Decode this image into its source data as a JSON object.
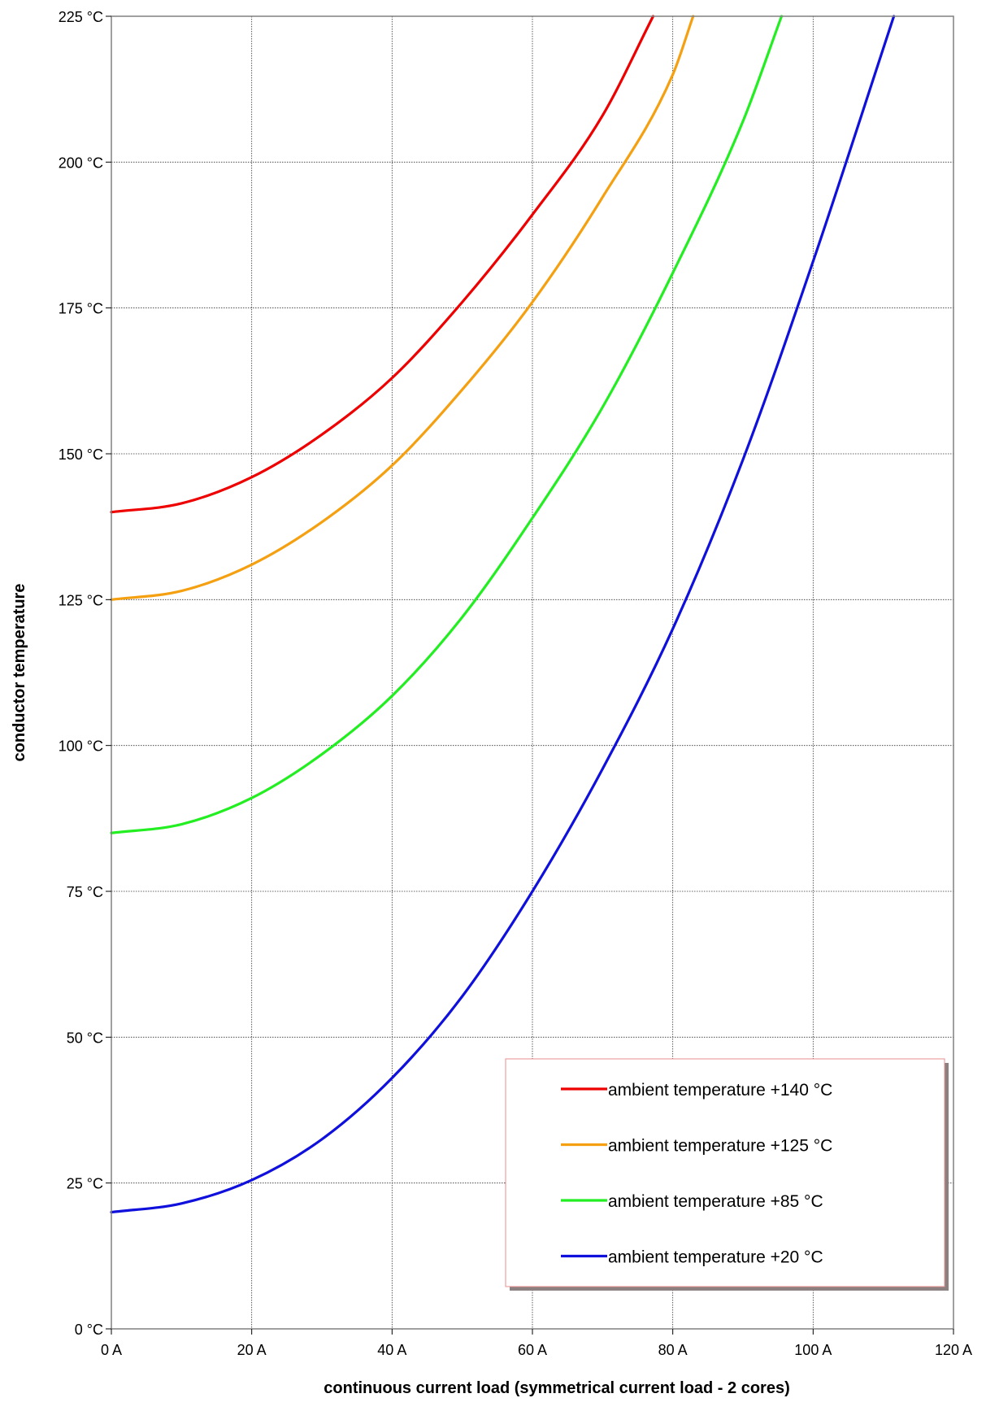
{
  "chart_data": {
    "type": "line",
    "title": "",
    "xlabel": "continuous current load (symmetrical current load - 2 cores)",
    "ylabel": "conductor temperature",
    "xlim": [
      0,
      120
    ],
    "ylim": [
      0,
      225
    ],
    "x_ticks": [
      0,
      20,
      40,
      60,
      80,
      100,
      120
    ],
    "y_ticks": [
      0,
      25,
      50,
      75,
      100,
      125,
      150,
      175,
      200,
      225
    ],
    "x_tick_labels": [
      "0 A",
      "20 A",
      "40 A",
      "60 A",
      "80 A",
      "100 A",
      "120 A"
    ],
    "y_tick_labels": [
      "0 °C",
      "25 °C",
      "50 °C",
      "75 °C",
      "100 °C",
      "125 °C",
      "150 °C",
      "175 °C",
      "200 °C",
      "225 °C"
    ],
    "grid": true,
    "legend_position": "bottom-right",
    "series": [
      {
        "name": "ambient temperature +140 °C",
        "color": "#ee0000",
        "x": [
          0,
          10,
          20,
          30,
          40,
          50,
          60,
          70,
          77.2
        ],
        "y": [
          140,
          141.5,
          146,
          153.3,
          163,
          176,
          191,
          208,
          225
        ]
      },
      {
        "name": "ambient temperature +125 °C",
        "color": "#f4a011",
        "x": [
          0,
          10,
          20,
          30,
          40,
          50,
          60,
          70,
          80,
          82.9
        ],
        "y": [
          125,
          126.5,
          131,
          138.3,
          148,
          161,
          176,
          194,
          215,
          225
        ]
      },
      {
        "name": "ambient temperature +85 °C",
        "color": "#22ee22",
        "x": [
          0,
          10,
          20,
          30,
          40,
          50,
          60,
          70,
          80,
          90,
          95.5
        ],
        "y": [
          85,
          86.5,
          91,
          98.5,
          108.5,
          122,
          139,
          158,
          181,
          207,
          225
        ]
      },
      {
        "name": "ambient temperature +20 °C",
        "color": "#1010dd",
        "x": [
          0,
          10,
          20,
          30,
          40,
          50,
          60,
          70,
          80,
          90,
          100,
          111.5
        ],
        "y": [
          20,
          21.5,
          25.5,
          32.5,
          43,
          57,
          75,
          96,
          120,
          149,
          183,
          225
        ]
      }
    ]
  }
}
